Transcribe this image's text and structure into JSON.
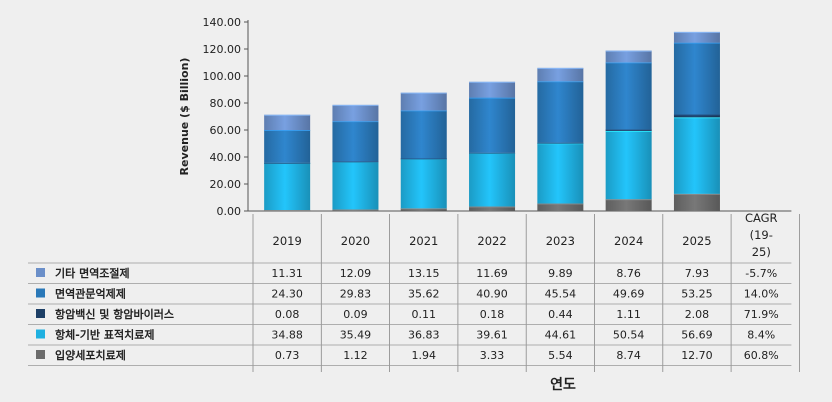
{
  "chart_data": {
    "type": "bar",
    "stacked": true,
    "categories": [
      "2019",
      "2020",
      "2021",
      "2022",
      "2023",
      "2024",
      "2025"
    ],
    "ylabel": "Revenue ($ Billion)",
    "xlabel": "연도",
    "ylim": [
      0,
      140
    ],
    "yticks": [
      "0.00",
      "20.00",
      "40.00",
      "60.00",
      "80.00",
      "100.00",
      "120.00",
      "140.00"
    ],
    "cagr_header": [
      "CAGR",
      "(19-",
      "25)"
    ],
    "series": [
      {
        "name": "입양세포치료제",
        "values": [
          0.73,
          1.12,
          1.94,
          3.33,
          5.54,
          8.74,
          12.7
        ],
        "labels": [
          "0.73",
          "1.12",
          "1.94",
          "3.33",
          "5.54",
          "8.74",
          "12.70"
        ],
        "cagr": "60.8%",
        "color": "#6b6b6b"
      },
      {
        "name": "항체-기반 표적치료제",
        "values": [
          34.88,
          35.49,
          36.83,
          39.61,
          44.61,
          50.54,
          56.69
        ],
        "labels": [
          "34.88",
          "35.49",
          "36.83",
          "39.61",
          "44.61",
          "50.54",
          "56.69"
        ],
        "cagr": "8.4%",
        "color": "#1fb0e0"
      },
      {
        "name": "항암백신 및 항암바이러스",
        "values": [
          0.08,
          0.09,
          0.11,
          0.18,
          0.44,
          1.11,
          2.08
        ],
        "labels": [
          "0.08",
          "0.09",
          "0.11",
          "0.18",
          "0.44",
          "1.11",
          "2.08"
        ],
        "cagr": "71.9%",
        "color": "#1d3f66"
      },
      {
        "name": "면역관문억제제",
        "values": [
          24.3,
          29.83,
          35.62,
          40.9,
          45.54,
          49.69,
          53.25
        ],
        "labels": [
          "24.30",
          "29.83",
          "35.62",
          "40.90",
          "45.54",
          "49.69",
          "53.25"
        ],
        "cagr": "14.0%",
        "color": "#2a78b8"
      },
      {
        "name": "기타 면역조절제",
        "values": [
          11.31,
          12.09,
          13.15,
          11.69,
          9.89,
          8.76,
          7.93
        ],
        "labels": [
          "11.31",
          "12.09",
          "13.15",
          "11.69",
          "9.89",
          "8.76",
          "7.93"
        ],
        "cagr": "-5.7%",
        "color": "#6b8fc9"
      }
    ],
    "table_order": [
      "기타 면역조절제",
      "면역관문억제제",
      "항암백신 및 항암바이러스",
      "항체-기반 표적치료제",
      "입양세포치료제"
    ],
    "grid": false,
    "legend": "table"
  }
}
